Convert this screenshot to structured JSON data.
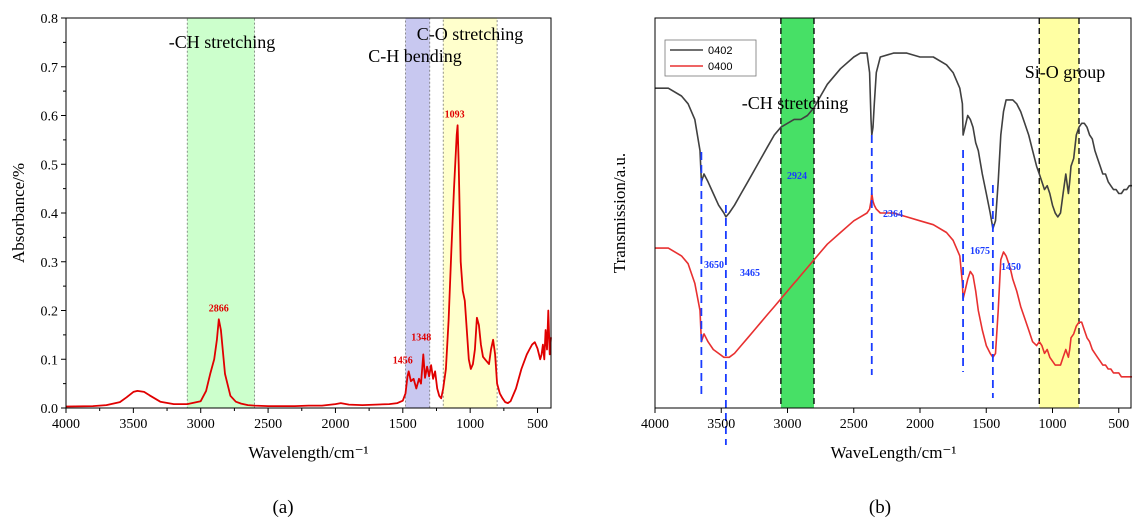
{
  "panels": {
    "a": "(a)",
    "b": "(b)"
  },
  "chart_data": [
    {
      "type": "line",
      "xlabel": "Wavelength/cm⁻¹",
      "ylabel": "Absorbance/%",
      "xlim": [
        4000,
        400
      ],
      "ylim": [
        0.0,
        0.8
      ],
      "x_reversed": true,
      "xticks": [
        4000,
        3500,
        3000,
        2500,
        2000,
        1500,
        1000,
        500
      ],
      "yticks": [
        0.0,
        0.1,
        0.2,
        0.3,
        0.4,
        0.5,
        0.6,
        0.7,
        0.8
      ],
      "ytick_labels": [
        "0.0",
        "0.1",
        "0.2",
        "0.3",
        "0.4",
        "0.5",
        "0.6",
        "0.7",
        "0.8"
      ],
      "grid": false,
      "bands": [
        {
          "label": "-CH stretching",
          "x_from": 3100,
          "x_to": 2600,
          "color": "#ccffcc"
        },
        {
          "label": "C-H bending",
          "x_from": 1480,
          "x_to": 1300,
          "color": "#c8c8f0"
        },
        {
          "label": "C-O stretching",
          "x_from": 1200,
          "x_to": 800,
          "color": "#ffffcc"
        }
      ],
      "series": [
        {
          "name": "",
          "color": "#e00000",
          "x": [
            4000,
            3800,
            3700,
            3600,
            3550,
            3500,
            3470,
            3420,
            3380,
            3300,
            3200,
            3100,
            3000,
            2960,
            2930,
            2900,
            2880,
            2866,
            2850,
            2820,
            2780,
            2740,
            2700,
            2650,
            2600,
            2500,
            2400,
            2300,
            2200,
            2100,
            2000,
            1960,
            1900,
            1800,
            1700,
            1600,
            1540,
            1500,
            1480,
            1465,
            1456,
            1440,
            1420,
            1400,
            1380,
            1365,
            1348,
            1335,
            1320,
            1305,
            1290,
            1275,
            1260,
            1245,
            1230,
            1215,
            1200,
            1180,
            1160,
            1140,
            1120,
            1100,
            1093,
            1085,
            1070,
            1055,
            1040,
            1025,
            1010,
            995,
            980,
            965,
            950,
            935,
            920,
            905,
            890,
            875,
            860,
            845,
            830,
            815,
            800,
            780,
            760,
            740,
            720,
            700,
            660,
            620,
            580,
            560,
            540,
            520,
            500,
            480,
            470,
            460,
            450,
            440,
            430,
            420,
            410,
            400
          ],
          "values": [
            0.003,
            0.004,
            0.006,
            0.012,
            0.022,
            0.033,
            0.035,
            0.033,
            0.026,
            0.013,
            0.008,
            0.008,
            0.014,
            0.035,
            0.07,
            0.1,
            0.14,
            0.182,
            0.16,
            0.07,
            0.025,
            0.013,
            0.009,
            0.006,
            0.005,
            0.004,
            0.004,
            0.004,
            0.005,
            0.005,
            0.008,
            0.01,
            0.007,
            0.006,
            0.007,
            0.008,
            0.01,
            0.015,
            0.03,
            0.065,
            0.075,
            0.055,
            0.06,
            0.04,
            0.06,
            0.05,
            0.11,
            0.062,
            0.085,
            0.065,
            0.088,
            0.06,
            0.075,
            0.04,
            0.025,
            0.02,
            0.04,
            0.08,
            0.18,
            0.32,
            0.45,
            0.56,
            0.58,
            0.5,
            0.3,
            0.24,
            0.22,
            0.16,
            0.1,
            0.08,
            0.09,
            0.12,
            0.185,
            0.17,
            0.13,
            0.105,
            0.1,
            0.095,
            0.09,
            0.12,
            0.14,
            0.11,
            0.05,
            0.03,
            0.02,
            0.012,
            0.01,
            0.014,
            0.04,
            0.08,
            0.11,
            0.12,
            0.13,
            0.135,
            0.122,
            0.1,
            0.11,
            0.13,
            0.1,
            0.16,
            0.12,
            0.2,
            0.11,
            0.145
          ]
        }
      ],
      "annotations": [
        {
          "text": "2866",
          "x": 2866,
          "y": 0.182
        },
        {
          "text": "1456",
          "x": 1456,
          "y": 0.075
        },
        {
          "text": "1348",
          "x": 1348,
          "y": 0.11
        },
        {
          "text": "1093",
          "x": 1093,
          "y": 0.58
        }
      ]
    },
    {
      "type": "line",
      "xlabel": "WaveLength/cm⁻¹",
      "ylabel": "Transmission/a.u.",
      "xlim": [
        4000,
        400
      ],
      "x_reversed": true,
      "xticks": [
        4000,
        3500,
        3000,
        2500,
        2000,
        1500,
        1000,
        500
      ],
      "yticks": [],
      "grid": false,
      "legend": "top-left",
      "bands": [
        {
          "label": "-CH stretching",
          "x_from": 3050,
          "x_to": 2800,
          "color": "#33dd55"
        },
        {
          "label": "Si-O group",
          "x_from": 1100,
          "x_to": 800,
          "color": "#ffff99"
        }
      ],
      "series": [
        {
          "name": "0402",
          "color": "#404040",
          "x": [
            4000,
            3900,
            3800,
            3750,
            3700,
            3660,
            3650,
            3630,
            3600,
            3560,
            3520,
            3480,
            3465,
            3440,
            3400,
            3350,
            3300,
            3250,
            3200,
            3150,
            3100,
            3050,
            3000,
            2950,
            2924,
            2900,
            2850,
            2800,
            2750,
            2700,
            2600,
            2500,
            2450,
            2400,
            2380,
            2370,
            2364,
            2355,
            2345,
            2330,
            2300,
            2200,
            2100,
            2000,
            1900,
            1800,
            1750,
            1700,
            1680,
            1675,
            1660,
            1640,
            1620,
            1600,
            1580,
            1560,
            1530,
            1500,
            1470,
            1450,
            1430,
            1410,
            1390,
            1370,
            1350,
            1320,
            1300,
            1270,
            1240,
            1210,
            1180,
            1150,
            1120,
            1100,
            1080,
            1060,
            1040,
            1020,
            1000,
            980,
            960,
            940,
            920,
            900,
            880,
            870,
            860,
            840,
            820,
            800,
            780,
            760,
            740,
            720,
            700,
            680,
            660,
            640,
            620,
            600,
            580,
            560,
            540,
            520,
            500,
            480,
            460,
            440,
            420,
            400
          ],
          "values": [
            0.82,
            0.82,
            0.8,
            0.78,
            0.74,
            0.66,
            0.58,
            0.6,
            0.58,
            0.55,
            0.52,
            0.5,
            0.49,
            0.5,
            0.52,
            0.55,
            0.58,
            0.61,
            0.64,
            0.67,
            0.7,
            0.72,
            0.73,
            0.74,
            0.74,
            0.74,
            0.75,
            0.77,
            0.8,
            0.83,
            0.87,
            0.9,
            0.91,
            0.91,
            0.86,
            0.74,
            0.7,
            0.72,
            0.78,
            0.86,
            0.9,
            0.91,
            0.91,
            0.9,
            0.9,
            0.88,
            0.86,
            0.82,
            0.78,
            0.7,
            0.72,
            0.75,
            0.74,
            0.72,
            0.68,
            0.66,
            0.6,
            0.55,
            0.5,
            0.46,
            0.48,
            0.58,
            0.7,
            0.76,
            0.79,
            0.79,
            0.79,
            0.78,
            0.76,
            0.73,
            0.7,
            0.66,
            0.62,
            0.6,
            0.58,
            0.56,
            0.57,
            0.55,
            0.52,
            0.5,
            0.49,
            0.5,
            0.55,
            0.6,
            0.55,
            0.58,
            0.62,
            0.64,
            0.7,
            0.72,
            0.73,
            0.73,
            0.72,
            0.7,
            0.69,
            0.66,
            0.64,
            0.62,
            0.6,
            0.6,
            0.58,
            0.57,
            0.56,
            0.56,
            0.55,
            0.55,
            0.56,
            0.56,
            0.57,
            0.57
          ]
        },
        {
          "name": "0400",
          "color": "#e83030",
          "x": [
            4000,
            3900,
            3800,
            3750,
            3700,
            3660,
            3650,
            3630,
            3600,
            3560,
            3520,
            3480,
            3465,
            3440,
            3400,
            3350,
            3300,
            3250,
            3200,
            3150,
            3100,
            3050,
            3000,
            2950,
            2924,
            2900,
            2850,
            2800,
            2750,
            2700,
            2600,
            2500,
            2450,
            2400,
            2380,
            2370,
            2364,
            2355,
            2345,
            2330,
            2300,
            2200,
            2100,
            2000,
            1900,
            1800,
            1750,
            1700,
            1680,
            1675,
            1660,
            1640,
            1620,
            1600,
            1580,
            1560,
            1530,
            1500,
            1470,
            1450,
            1430,
            1410,
            1390,
            1370,
            1350,
            1320,
            1300,
            1270,
            1240,
            1210,
            1180,
            1150,
            1120,
            1100,
            1080,
            1060,
            1040,
            1020,
            1000,
            980,
            960,
            940,
            920,
            900,
            880,
            870,
            860,
            840,
            820,
            800,
            780,
            760,
            740,
            720,
            700,
            680,
            660,
            640,
            620,
            600,
            580,
            560,
            540,
            520,
            500,
            480,
            460,
            440,
            420,
            400
          ],
          "values": [
            0.41,
            0.41,
            0.39,
            0.37,
            0.32,
            0.25,
            0.17,
            0.19,
            0.17,
            0.15,
            0.14,
            0.13,
            0.13,
            0.13,
            0.14,
            0.16,
            0.18,
            0.2,
            0.22,
            0.24,
            0.26,
            0.28,
            0.3,
            0.32,
            0.33,
            0.34,
            0.36,
            0.38,
            0.4,
            0.42,
            0.45,
            0.48,
            0.49,
            0.5,
            0.51,
            0.53,
            0.55,
            0.53,
            0.52,
            0.51,
            0.5,
            0.5,
            0.49,
            0.48,
            0.47,
            0.45,
            0.43,
            0.39,
            0.32,
            0.28,
            0.3,
            0.33,
            0.35,
            0.34,
            0.3,
            0.25,
            0.2,
            0.16,
            0.14,
            0.13,
            0.14,
            0.25,
            0.38,
            0.4,
            0.39,
            0.36,
            0.33,
            0.3,
            0.26,
            0.23,
            0.2,
            0.17,
            0.16,
            0.17,
            0.16,
            0.14,
            0.15,
            0.13,
            0.12,
            0.11,
            0.11,
            0.11,
            0.13,
            0.15,
            0.13,
            0.15,
            0.18,
            0.19,
            0.21,
            0.22,
            0.22,
            0.2,
            0.18,
            0.17,
            0.15,
            0.14,
            0.13,
            0.12,
            0.11,
            0.11,
            0.1,
            0.1,
            0.09,
            0.09,
            0.09,
            0.08,
            0.08,
            0.08,
            0.08,
            0.08
          ]
        }
      ],
      "annotations": [
        {
          "text": "3650",
          "x": 3650
        },
        {
          "text": "3465",
          "x": 3465
        },
        {
          "text": "2924",
          "x": 2924
        },
        {
          "text": "2364",
          "x": 2364
        },
        {
          "text": "1675",
          "x": 1675
        },
        {
          "text": "1450",
          "x": 1450
        }
      ],
      "marker_lines": [
        3650,
        3465,
        2364,
        1675,
        1450
      ],
      "marker_color": "#1a3cff"
    }
  ]
}
